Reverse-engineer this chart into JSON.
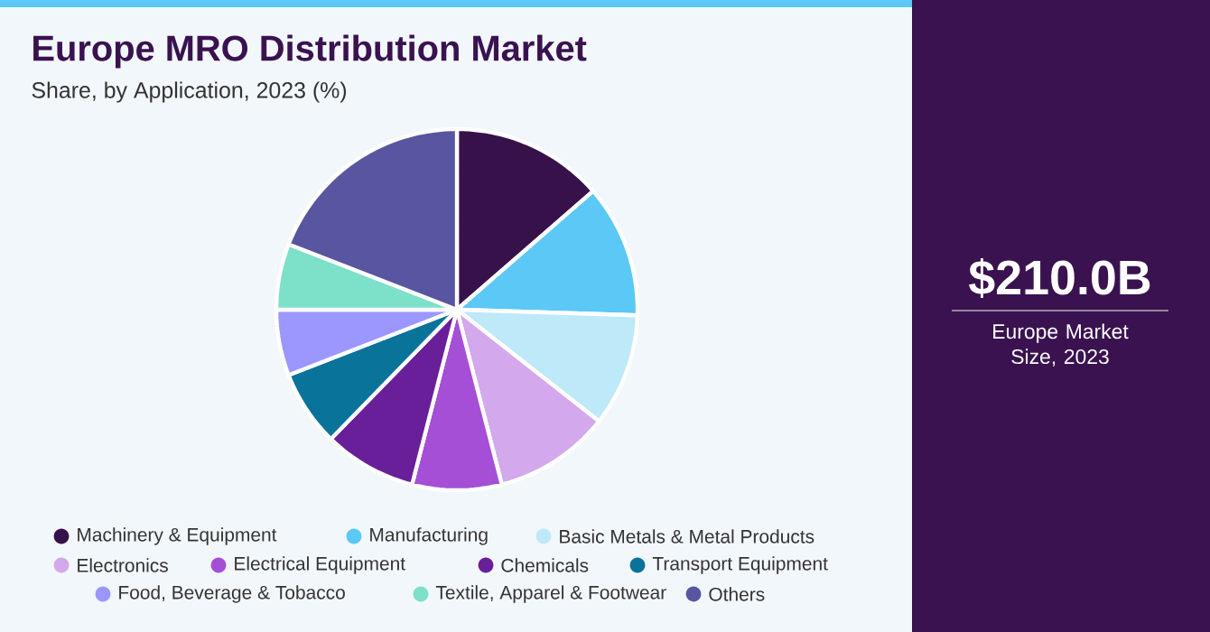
{
  "chart_data": {
    "type": "pie",
    "title": "Europe MRO Distribution Market",
    "subtitle": "Share, by Application, 2023 (%)",
    "categories": [
      "Machinery & Equipment",
      "Manufacturing",
      "Basic Metals & Metal Products",
      "Electronics",
      "Electrical Equipment",
      "Chemicals",
      "Transport Equipment",
      "Food, Beverage & Tobacco",
      "Textile, Apparel & Footwear",
      "Others"
    ],
    "values": [
      13.6,
      11.9,
      10.1,
      10.4,
      8.0,
      8.3,
      6.8,
      5.9,
      5.9,
      19.1
    ],
    "colors": [
      "#37124a",
      "#5bc8f5",
      "#bde9f9",
      "#d4a8ec",
      "#a44fd6",
      "#6a1f9a",
      "#0a7399",
      "#9b97ff",
      "#7de0c8",
      "#5856a0"
    ],
    "legend": "bottom",
    "annotations": [
      "$210.0B",
      "Europe Market Size, 2023"
    ]
  }
}
